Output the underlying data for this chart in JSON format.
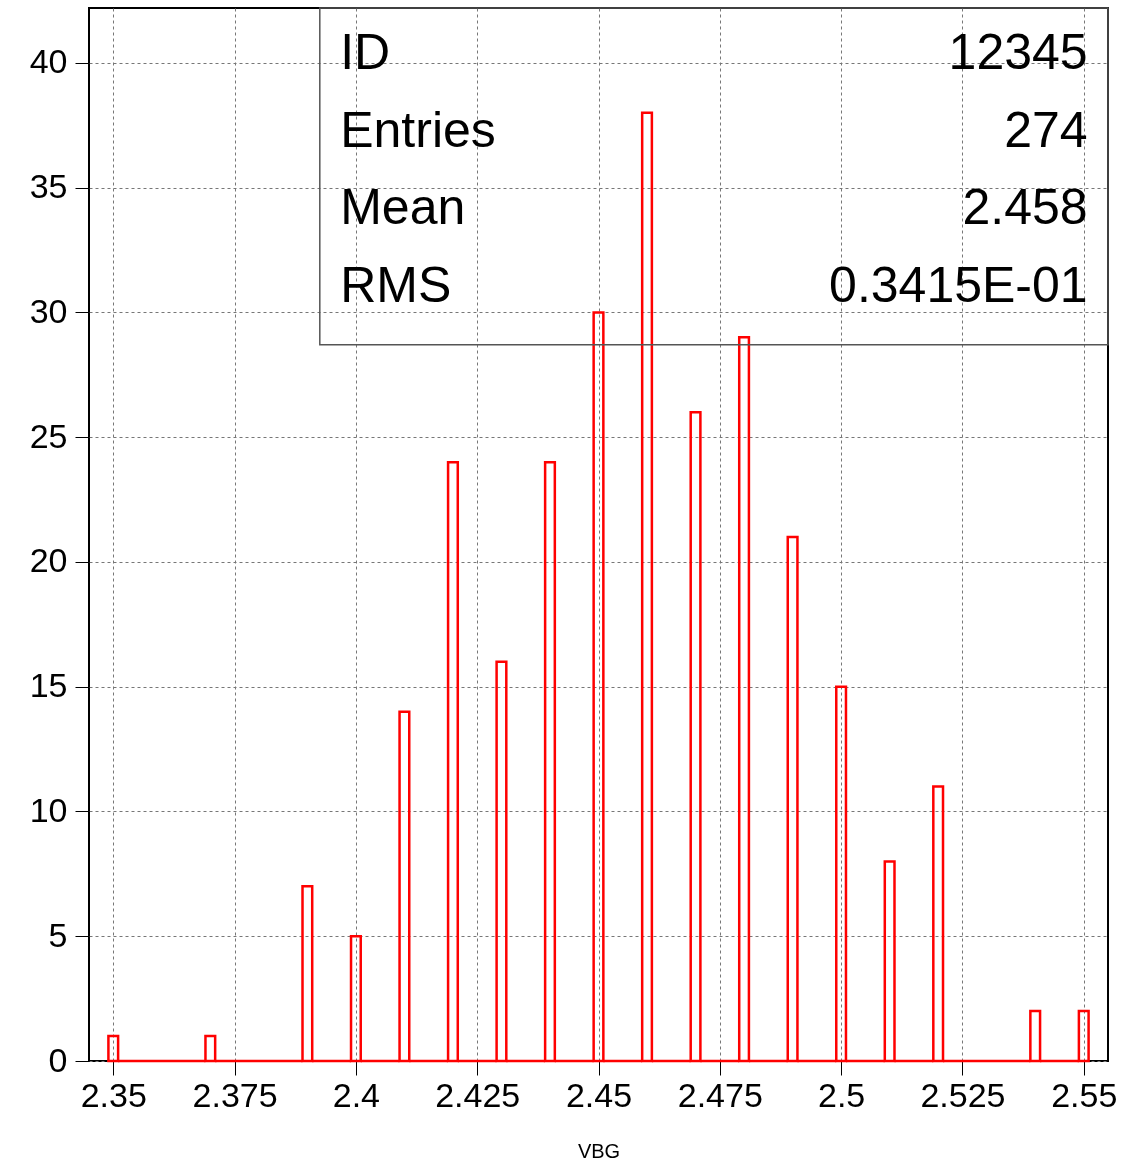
{
  "chart_data": {
    "type": "histogram",
    "xlabel": "VBG",
    "color": "#ff0000",
    "bins": [
      2.349,
      2.351,
      2.369,
      2.371,
      2.389,
      2.391,
      2.399,
      2.401,
      2.409,
      2.411,
      2.419,
      2.421,
      2.429,
      2.431,
      2.439,
      2.441,
      2.449,
      2.451,
      2.459,
      2.461,
      2.469,
      2.471,
      2.479,
      2.481,
      2.489,
      2.491,
      2.499,
      2.501,
      2.509,
      2.511,
      2.519,
      2.521,
      2.539,
      2.541,
      2.549,
      2.551
    ],
    "values": [
      1,
      0,
      1,
      0,
      7,
      0,
      5,
      0,
      14,
      0,
      24,
      0,
      16,
      0,
      24,
      0,
      30,
      0,
      38,
      0,
      26,
      0,
      29,
      0,
      21,
      0,
      15,
      0,
      8,
      0,
      11,
      0,
      2,
      0,
      2
    ],
    "xlim": [
      2.345,
      2.555
    ],
    "xticks": [
      2.35,
      2.375,
      2.4,
      2.425,
      2.45,
      2.475,
      2.5,
      2.525,
      2.55
    ],
    "ylim": [
      0,
      42.2
    ],
    "yticks": [
      0,
      5,
      10,
      15,
      20,
      25,
      30,
      35,
      40
    ],
    "grid": true,
    "annotations": [
      "ID",
      "12345",
      "Entries",
      "274",
      "Mean",
      "2.458",
      "RMS",
      "0.3415E-01"
    ]
  }
}
